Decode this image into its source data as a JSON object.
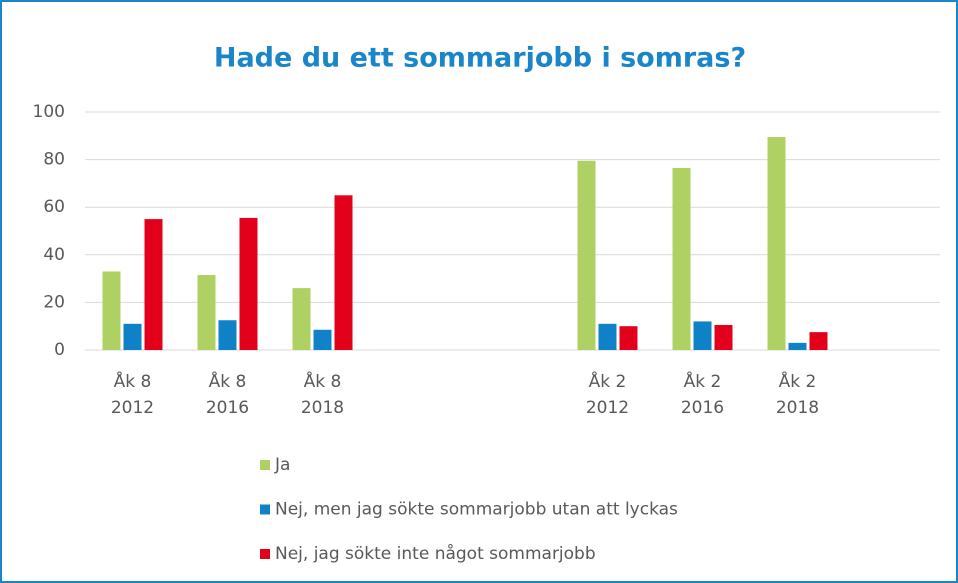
{
  "chart_data": {
    "type": "bar",
    "title": "Hade du ett sommarjobb i somras?",
    "categories": [
      "Åk 8\n2012",
      "Åk 8\n2016",
      "Åk 8\n2018",
      null,
      null,
      "Åk 2\n2012",
      "Åk 2\n2016",
      "Åk 2\n2018",
      null
    ],
    "series": [
      {
        "name": "Ja",
        "color": "#afd063",
        "values": [
          33,
          31.5,
          26,
          null,
          null,
          79.5,
          76.5,
          89.5,
          null
        ]
      },
      {
        "name": "Nej, men jag sökte sommarjobb utan att lyckas",
        "color": "#0f81c7",
        "values": [
          11,
          12.5,
          8.5,
          null,
          null,
          11,
          12,
          3,
          null
        ]
      },
      {
        "name": "Nej, jag sökte inte något sommarjobb",
        "color": "#e3001b",
        "values": [
          55,
          55.5,
          65,
          null,
          null,
          10,
          10.5,
          7.5,
          null
        ]
      }
    ],
    "ylim": [
      0,
      100
    ],
    "yticks": [
      0,
      20,
      40,
      60,
      80,
      100
    ],
    "grid": true,
    "legend": "bottom"
  }
}
